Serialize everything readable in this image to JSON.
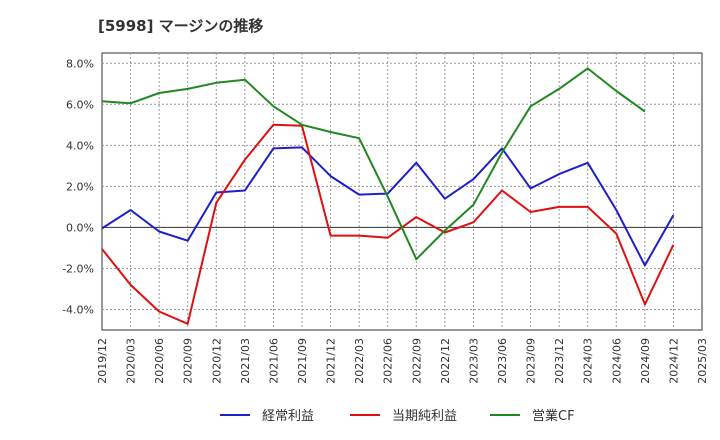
{
  "chart_data": {
    "type": "line",
    "title": "[5998]  マージンの推移",
    "x_categories": [
      "2019/12",
      "2020/03",
      "2020/06",
      "2020/09",
      "2020/12",
      "2021/03",
      "2021/06",
      "2021/09",
      "2021/12",
      "2022/03",
      "2022/06",
      "2022/09",
      "2022/12",
      "2023/03",
      "2023/06",
      "2023/09",
      "2023/12",
      "2024/03",
      "2024/06",
      "2024/09",
      "2024/12",
      "2025/03"
    ],
    "y_ticks": [
      "8.0%",
      "6.0%",
      "4.0%",
      "2.0%",
      "0.0%",
      "-2.0%",
      "-4.0%"
    ],
    "ylim": [
      -5.0,
      8.5
    ],
    "grid": true,
    "legend_position": "bottom",
    "series": [
      {
        "name": "経常利益",
        "color": "#1f1fcc",
        "values": [
          -0.05,
          0.85,
          -0.2,
          -0.65,
          1.7,
          1.8,
          3.85,
          3.9,
          2.5,
          1.6,
          1.65,
          3.15,
          1.4,
          2.35,
          3.85,
          1.9,
          2.6,
          3.15,
          0.85,
          -1.85,
          0.6,
          null
        ]
      },
      {
        "name": "当期純利益",
        "color": "#dd1111",
        "values": [
          -1.05,
          -2.8,
          -4.1,
          -4.7,
          1.2,
          3.3,
          5.0,
          4.95,
          -0.4,
          -0.4,
          -0.5,
          0.5,
          -0.25,
          0.25,
          1.8,
          0.75,
          1.0,
          1.0,
          -0.3,
          -3.75,
          -0.85,
          null
        ]
      },
      {
        "name": "営業CF",
        "color": "#228822",
        "values": [
          6.15,
          6.05,
          6.55,
          6.75,
          7.05,
          7.2,
          5.9,
          5.0,
          4.65,
          4.35,
          1.5,
          -1.55,
          -0.15,
          1.1,
          3.65,
          5.9,
          6.75,
          7.75,
          6.65,
          5.65,
          null,
          null
        ]
      }
    ]
  }
}
